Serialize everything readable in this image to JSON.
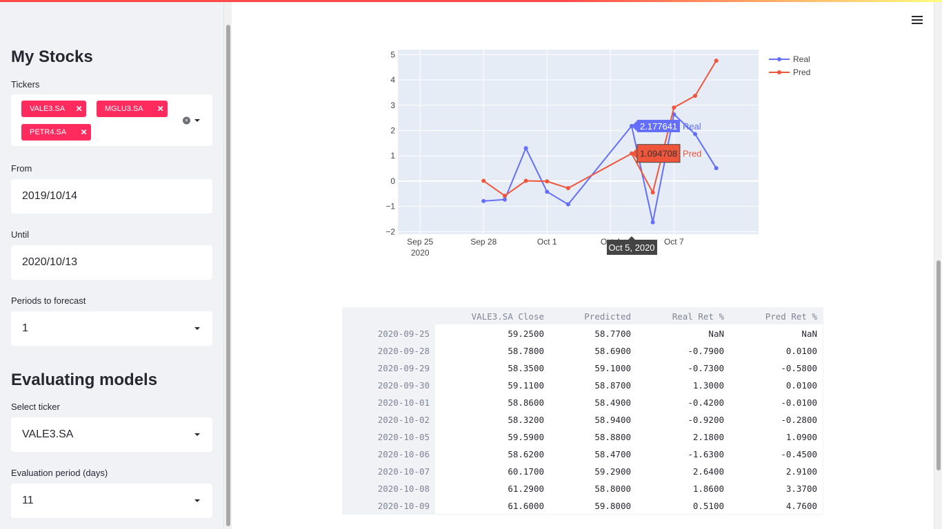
{
  "sidebar": {
    "heading_stocks": "My Stocks",
    "tickers_label": "Tickers",
    "tickers": [
      "VALE3.SA",
      "MGLU3.SA",
      "PETR4.SA"
    ],
    "from_label": "From",
    "from_value": "2019/10/14",
    "until_label": "Until",
    "until_value": "2020/10/13",
    "periods_label": "Periods to forecast",
    "periods_value": "1",
    "heading_eval": "Evaluating models",
    "select_ticker_label": "Select ticker",
    "select_ticker_value": "VALE3.SA",
    "eval_period_label": "Evaluation period (days)",
    "eval_period_value": "11"
  },
  "chart_data": {
    "type": "line",
    "x": [
      "2020-09-25",
      "2020-09-28",
      "2020-09-29",
      "2020-09-30",
      "2020-10-01",
      "2020-10-02",
      "2020-10-05",
      "2020-10-06",
      "2020-10-07",
      "2020-10-08",
      "2020-10-09"
    ],
    "series": [
      {
        "name": "Real",
        "color": "#636efa",
        "values": [
          null,
          -0.79,
          -0.73,
          1.3,
          -0.42,
          -0.92,
          2.18,
          -1.63,
          2.64,
          1.86,
          0.51
        ]
      },
      {
        "name": "Pred",
        "color": "#ef553b",
        "values": [
          null,
          0.01,
          -0.58,
          0.01,
          -0.01,
          -0.28,
          1.09,
          -0.45,
          2.91,
          3.37,
          4.76
        ]
      }
    ],
    "x_ticks": [
      {
        "date": "2020-09-25",
        "label": "Sep 25",
        "sub": "2020"
      },
      {
        "date": "2020-09-28",
        "label": "Sep 28",
        "sub": ""
      },
      {
        "date": "2020-10-01",
        "label": "Oct 1",
        "sub": ""
      },
      {
        "date": "2020-10-04",
        "label": "Oct 4",
        "sub": ""
      },
      {
        "date": "2020-10-07",
        "label": "Oct 7",
        "sub": ""
      }
    ],
    "y_ticks": [
      5,
      4,
      3,
      2,
      1,
      0,
      -1,
      -2
    ],
    "ylim": [
      -2.1,
      5.2
    ],
    "xlim": [
      "2020-09-24",
      "2020-10-11"
    ],
    "grid": true,
    "legend_position": "right",
    "hover": {
      "date_label": "Oct 5, 2020",
      "real_value": "2.177641",
      "pred_value": "1.094708"
    }
  },
  "table": {
    "columns": [
      "VALE3.SA Close",
      "Predicted",
      "Real Ret %",
      "Pred Ret %"
    ],
    "rows": [
      {
        "index": "2020-09-25",
        "cells": [
          "59.2500",
          "58.7700",
          "NaN",
          "NaN"
        ]
      },
      {
        "index": "2020-09-28",
        "cells": [
          "58.7800",
          "58.6900",
          "-0.7900",
          "0.0100"
        ]
      },
      {
        "index": "2020-09-29",
        "cells": [
          "58.3500",
          "59.1000",
          "-0.7300",
          "-0.5800"
        ]
      },
      {
        "index": "2020-09-30",
        "cells": [
          "59.1100",
          "58.8700",
          "1.3000",
          "0.0100"
        ]
      },
      {
        "index": "2020-10-01",
        "cells": [
          "58.8600",
          "58.4900",
          "-0.4200",
          "-0.0100"
        ]
      },
      {
        "index": "2020-10-02",
        "cells": [
          "58.3200",
          "58.9400",
          "-0.9200",
          "-0.2800"
        ]
      },
      {
        "index": "2020-10-05",
        "cells": [
          "59.5900",
          "58.8800",
          "2.1800",
          "1.0900"
        ]
      },
      {
        "index": "2020-10-06",
        "cells": [
          "58.6200",
          "58.4700",
          "-1.6300",
          "-0.4500"
        ]
      },
      {
        "index": "2020-10-07",
        "cells": [
          "60.1700",
          "59.2900",
          "2.6400",
          "2.9100"
        ]
      },
      {
        "index": "2020-10-08",
        "cells": [
          "61.2900",
          "58.8000",
          "1.8600",
          "3.3700"
        ]
      },
      {
        "index": "2020-10-09",
        "cells": [
          "61.6000",
          "59.8000",
          "0.5100",
          "4.7600"
        ]
      }
    ]
  }
}
